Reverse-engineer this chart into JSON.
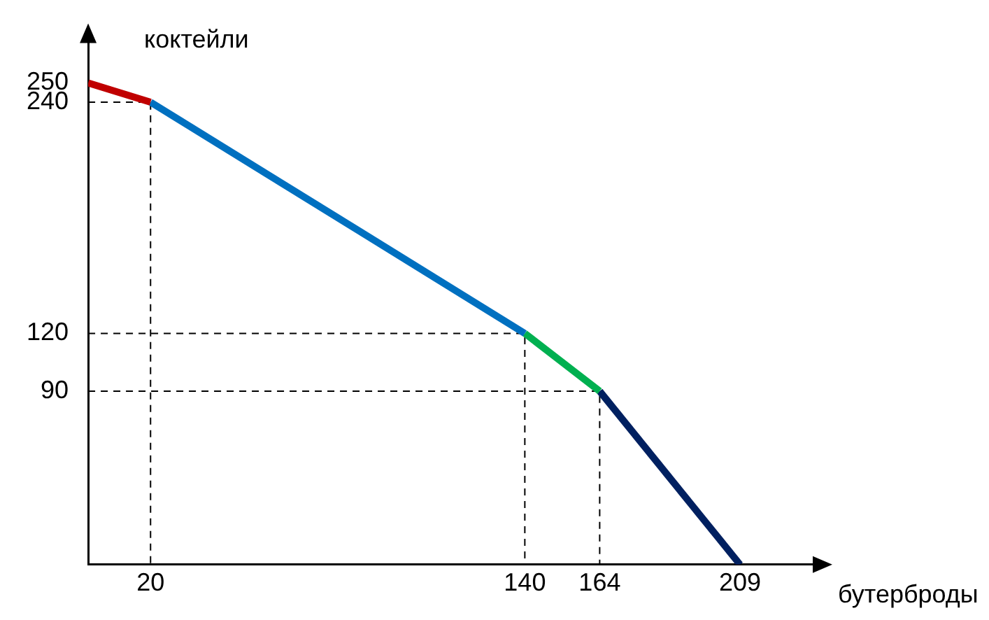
{
  "chart_data": {
    "type": "line",
    "xlabel": "бутерброды",
    "ylabel": "коктейли",
    "xlim": [
      0,
      235
    ],
    "ylim": [
      0,
      275
    ],
    "xticks": [
      20,
      140,
      164,
      209
    ],
    "yticks": [
      90,
      120,
      240,
      250
    ],
    "grid": false,
    "legend": false,
    "marker": "none",
    "line_style": "solid",
    "series": [
      {
        "color": "#c00000",
        "x": [
          0,
          20
        ],
        "values": [
          250,
          240
        ]
      },
      {
        "color": "#0070c0",
        "x": [
          20,
          140
        ],
        "values": [
          240,
          120
        ]
      },
      {
        "color": "#00b050",
        "x": [
          140,
          164
        ],
        "values": [
          120,
          90
        ]
      },
      {
        "color": "#002060",
        "x": [
          164,
          209
        ],
        "values": [
          90,
          0
        ]
      },
      {
        "color": "#000000",
        "line_style": "dashed",
        "x": [
          0,
          20,
          20
        ],
        "values": [
          240,
          240,
          0
        ]
      },
      {
        "color": "#000000",
        "line_style": "dashed",
        "x": [
          0,
          140,
          140
        ],
        "values": [
          120,
          120,
          0
        ]
      },
      {
        "color": "#000000",
        "line_style": "dashed",
        "x": [
          0,
          164,
          164
        ],
        "values": [
          90,
          90,
          0
        ]
      }
    ]
  }
}
